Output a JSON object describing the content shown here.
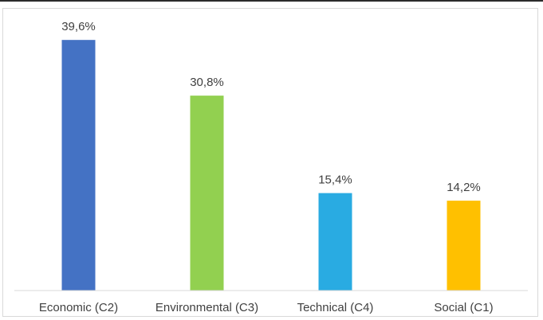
{
  "chart_data": {
    "type": "bar",
    "title": "",
    "xlabel": "",
    "ylabel": "",
    "categories": [
      "Economic (C2)",
      "Environmental (C3)",
      "Technical (C4)",
      "Social (C1)"
    ],
    "values": [
      39.6,
      30.8,
      15.4,
      14.2
    ],
    "value_labels": [
      "39,6%",
      "30,8%",
      "15,4%",
      "14,2%"
    ],
    "unit": "%",
    "colors": [
      "#4472C4",
      "#92D050",
      "#29ABE2",
      "#FFC000"
    ],
    "ylim": [
      0,
      40
    ],
    "grid": false,
    "legend": "none"
  }
}
